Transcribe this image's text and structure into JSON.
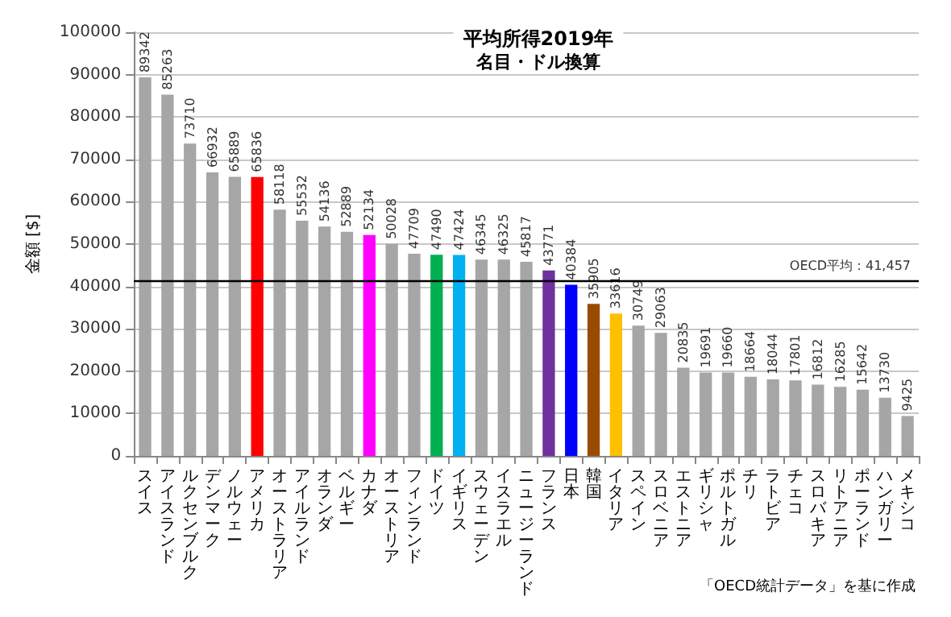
{
  "chart_data": {
    "type": "bar",
    "title": "平均所得2019年",
    "subtitle": "名目・ドル換算",
    "ylabel": "金額 [$]",
    "categories": [
      "スイス",
      "アイスランド",
      "ルクセンブルク",
      "デンマーク",
      "ノルウェー",
      "アメリカ",
      "オーストラリア",
      "アイルランド",
      "オランダ",
      "ベルギー",
      "カナダ",
      "オーストリア",
      "フィンランド",
      "ドイツ",
      "イギリス",
      "スウェーデン",
      "イスラエル",
      "ニュージーランド",
      "フランス",
      "日本",
      "韓国",
      "イタリア",
      "スペイン",
      "スロベニア",
      "エストニア",
      "ギリシャ",
      "ポルトガル",
      "チリ",
      "ラトビア",
      "チェコ",
      "スロバキア",
      "リトアニア",
      "ポーランド",
      "ハンガリー",
      "メキシコ"
    ],
    "values": [
      89342,
      85263,
      73710,
      66932,
      65889,
      65836,
      58118,
      55532,
      54136,
      52889,
      52134,
      50028,
      47709,
      47490,
      47424,
      46345,
      46325,
      45817,
      43771,
      40384,
      35905,
      33616,
      30749,
      29063,
      20835,
      19691,
      19660,
      18664,
      18044,
      17801,
      16812,
      16285,
      15642,
      13730,
      9425
    ],
    "colors": [
      "#a6a6a6",
      "#a6a6a6",
      "#a6a6a6",
      "#a6a6a6",
      "#a6a6a6",
      "#ff0000",
      "#a6a6a6",
      "#a6a6a6",
      "#a6a6a6",
      "#a6a6a6",
      "#ff00ff",
      "#a6a6a6",
      "#a6a6a6",
      "#00b050",
      "#00b0f0",
      "#a6a6a6",
      "#a6a6a6",
      "#a6a6a6",
      "#7030a0",
      "#0000ff",
      "#994c00",
      "#ffc000",
      "#a6a6a6",
      "#a6a6a6",
      "#a6a6a6",
      "#a6a6a6",
      "#a6a6a6",
      "#a6a6a6",
      "#a6a6a6",
      "#a6a6a6",
      "#a6a6a6",
      "#a6a6a6",
      "#a6a6a6",
      "#a6a6a6",
      "#a6a6a6"
    ],
    "ylim": [
      0,
      100000
    ],
    "yticks": [
      0,
      10000,
      20000,
      30000,
      40000,
      50000,
      60000,
      70000,
      80000,
      90000,
      100000
    ],
    "grid": "y",
    "data_labels": true,
    "ref_lines": [
      {
        "axis": "y",
        "value": 41457,
        "label": "OECD平均：41,457",
        "color": "#000000"
      }
    ],
    "annotations": [
      "「OECD統計データ」を基に作成"
    ]
  }
}
